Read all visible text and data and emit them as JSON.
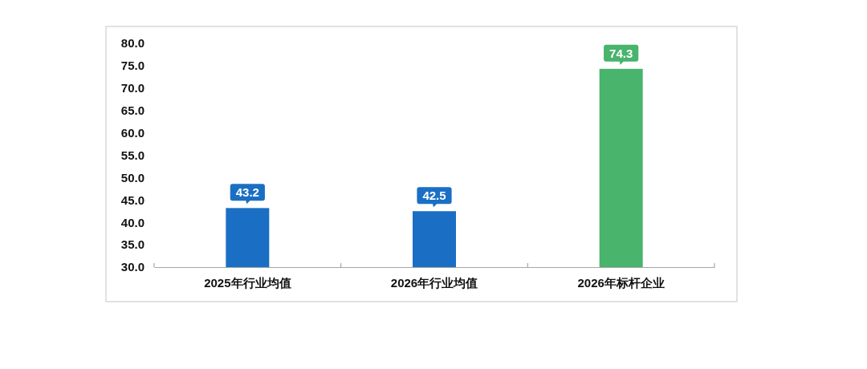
{
  "chart_data": {
    "type": "bar",
    "categories": [
      "2025年行业均值",
      "2026年行业均值",
      "2026年标杆企业"
    ],
    "values": [
      43.2,
      42.5,
      74.3
    ],
    "colors": [
      "#1a6fc4",
      "#1a6fc4",
      "#48b46c"
    ],
    "ylim": [
      30,
      80
    ],
    "yticks": [
      {
        "value": 30,
        "label": "30.0"
      },
      {
        "value": 35,
        "label": "35.0"
      },
      {
        "value": 40,
        "label": "40.0"
      },
      {
        "value": 45,
        "label": "45.0"
      },
      {
        "value": 50,
        "label": "50.0"
      },
      {
        "value": 55,
        "label": "55.0"
      },
      {
        "value": 60,
        "label": "60.0"
      },
      {
        "value": 65,
        "label": "65.0"
      },
      {
        "value": 70,
        "label": "70.0"
      },
      {
        "value": 75,
        "label": "75.0"
      },
      {
        "value": 80,
        "label": "80.0"
      }
    ],
    "data_labels": true,
    "grid": false
  }
}
